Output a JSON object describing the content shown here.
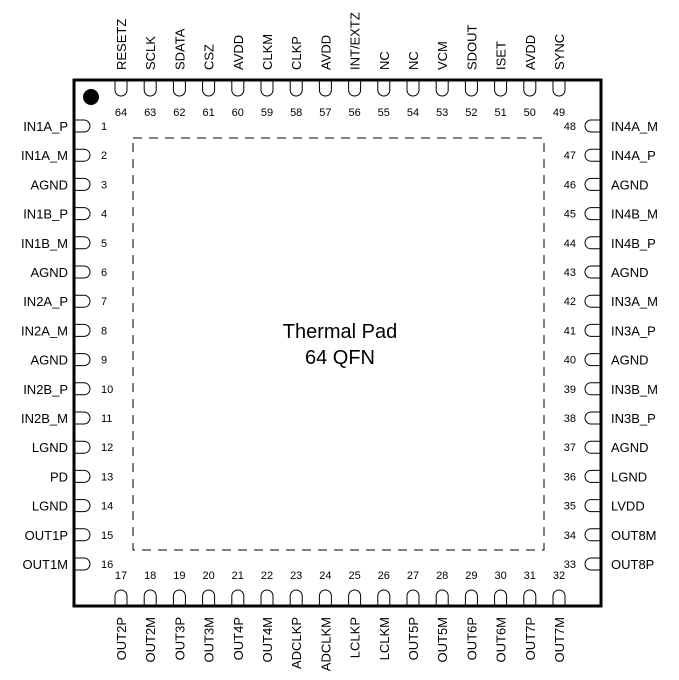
{
  "package": {
    "thermal_pad_line1": "Thermal Pad",
    "thermal_pad_line2": "64 QFN",
    "colors": {
      "outline": "#000000",
      "background": "#ffffff"
    }
  },
  "pins_left": [
    {
      "num": "1",
      "name": "IN1A_P"
    },
    {
      "num": "2",
      "name": "IN1A_M"
    },
    {
      "num": "3",
      "name": "AGND"
    },
    {
      "num": "4",
      "name": "IN1B_P"
    },
    {
      "num": "5",
      "name": "IN1B_M"
    },
    {
      "num": "6",
      "name": "AGND"
    },
    {
      "num": "7",
      "name": "IN2A_P"
    },
    {
      "num": "8",
      "name": "IN2A_M"
    },
    {
      "num": "9",
      "name": "AGND"
    },
    {
      "num": "10",
      "name": "IN2B_P"
    },
    {
      "num": "11",
      "name": "IN2B_M"
    },
    {
      "num": "12",
      "name": "LGND"
    },
    {
      "num": "13",
      "name": "PD"
    },
    {
      "num": "14",
      "name": "LGND"
    },
    {
      "num": "15",
      "name": "OUT1P"
    },
    {
      "num": "16",
      "name": "OUT1M"
    }
  ],
  "pins_bottom": [
    {
      "num": "17",
      "name": "OUT2P"
    },
    {
      "num": "18",
      "name": "OUT2M"
    },
    {
      "num": "19",
      "name": "OUT3P"
    },
    {
      "num": "20",
      "name": "OUT3M"
    },
    {
      "num": "21",
      "name": "OUT4P"
    },
    {
      "num": "22",
      "name": "OUT4M"
    },
    {
      "num": "23",
      "name": "ADCLKP"
    },
    {
      "num": "24",
      "name": "ADCLKM"
    },
    {
      "num": "25",
      "name": "LCLKP"
    },
    {
      "num": "26",
      "name": "LCLKM"
    },
    {
      "num": "27",
      "name": "OUT5P"
    },
    {
      "num": "28",
      "name": "OUT5M"
    },
    {
      "num": "29",
      "name": "OUT6P"
    },
    {
      "num": "30",
      "name": "OUT6M"
    },
    {
      "num": "31",
      "name": "OUT7P"
    },
    {
      "num": "32",
      "name": "OUT7M"
    }
  ],
  "pins_right": [
    {
      "num": "33",
      "name": "OUT8P"
    },
    {
      "num": "34",
      "name": "OUT8M"
    },
    {
      "num": "35",
      "name": "LVDD"
    },
    {
      "num": "36",
      "name": "LGND"
    },
    {
      "num": "37",
      "name": "AGND"
    },
    {
      "num": "38",
      "name": "IN3B_P"
    },
    {
      "num": "39",
      "name": "IN3B_M"
    },
    {
      "num": "40",
      "name": "AGND"
    },
    {
      "num": "41",
      "name": "IN3A_P"
    },
    {
      "num": "42",
      "name": "IN3A_M"
    },
    {
      "num": "43",
      "name": "AGND"
    },
    {
      "num": "44",
      "name": "IN4B_P"
    },
    {
      "num": "45",
      "name": "IN4B_M"
    },
    {
      "num": "46",
      "name": "AGND"
    },
    {
      "num": "47",
      "name": "IN4A_P"
    },
    {
      "num": "48",
      "name": "IN4A_M"
    }
  ],
  "pins_top": [
    {
      "num": "49",
      "name": "SYNC"
    },
    {
      "num": "50",
      "name": "AVDD"
    },
    {
      "num": "51",
      "name": "ISET"
    },
    {
      "num": "52",
      "name": "SDOUT"
    },
    {
      "num": "53",
      "name": "VCM"
    },
    {
      "num": "54",
      "name": "NC"
    },
    {
      "num": "55",
      "name": "NC"
    },
    {
      "num": "56",
      "name": "INT/EXTZ"
    },
    {
      "num": "57",
      "name": "AVDD"
    },
    {
      "num": "58",
      "name": "CLKP"
    },
    {
      "num": "59",
      "name": "CLKM"
    },
    {
      "num": "60",
      "name": "AVDD"
    },
    {
      "num": "61",
      "name": "CSZ"
    },
    {
      "num": "62",
      "name": "SDATA"
    },
    {
      "num": "63",
      "name": "SCLK"
    },
    {
      "num": "64",
      "name": "RESETZ"
    }
  ]
}
